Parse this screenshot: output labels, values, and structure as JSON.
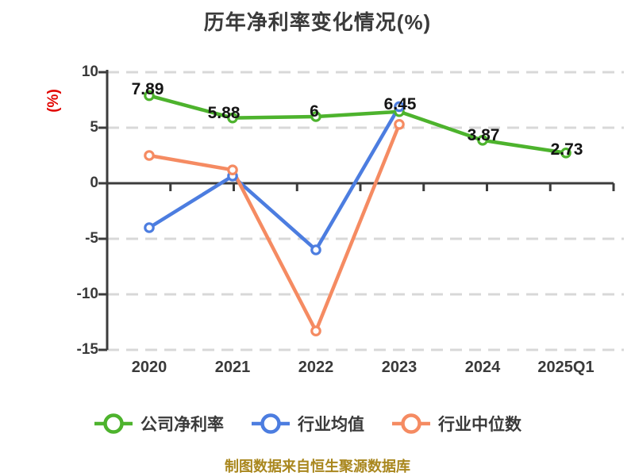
{
  "title": "历年净利率变化情况(%)",
  "y_axis_unit": "(%)",
  "footer_note": "制图数据来自恒生聚源数据库",
  "colors": {
    "company_series": "#4db32d",
    "industry_mean_series": "#4c7de0",
    "industry_median_series": "#f58b62",
    "axis": "#3c3c3c",
    "grid": "#d8d8d8",
    "tick_text": "#3a3a3a",
    "point_label_text": "#151515",
    "y_unit_red": "#e10500",
    "footer_gold": "#a9871e",
    "marker_fill": "#ffffff",
    "background": "#ffffff"
  },
  "legend": {
    "position": "bottom",
    "items": [
      {
        "label": "公司净利率",
        "color": "#4db32d"
      },
      {
        "label": "行业均值",
        "color": "#4c7de0"
      },
      {
        "label": "行业中位数",
        "color": "#f58b62"
      }
    ]
  },
  "chart_data": {
    "type": "line",
    "title": "历年净利率变化情况(%)",
    "xlabel": "",
    "ylabel": "(%)",
    "categories": [
      "2020",
      "2021",
      "2022",
      "2023",
      "2024",
      "2025Q1"
    ],
    "series": [
      {
        "name": "公司净利率",
        "color": "#4db32d",
        "values": [
          7.89,
          5.88,
          6,
          6.45,
          3.87,
          2.73
        ],
        "point_labels": [
          "7.89",
          "5.88",
          "6",
          "6.45",
          "3.87",
          "2.73"
        ]
      },
      {
        "name": "行业均值",
        "color": "#4c7de0",
        "values": [
          -4.0,
          0.65,
          -6.0,
          6.9,
          null,
          null
        ],
        "point_labels": []
      },
      {
        "name": "行业中位数",
        "color": "#f58b62",
        "values": [
          2.5,
          1.2,
          -13.3,
          5.3,
          null,
          null
        ],
        "point_labels": []
      }
    ],
    "yticks": [
      10,
      5,
      0,
      -5,
      -10,
      -15
    ],
    "ylim": [
      -15,
      10
    ],
    "grid": "horizontal-dashed",
    "zero_axis": true,
    "legend_position": "bottom"
  }
}
